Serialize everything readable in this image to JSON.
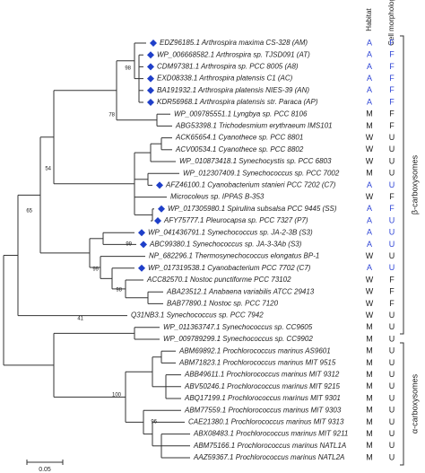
{
  "headers": {
    "habitat": "Habitat",
    "morphology": "Cell morphology"
  },
  "taxa": [
    {
      "label": "EDZ96185.1 Arthrospira maxima CS-328 (AM)",
      "habitat": "A",
      "morphology": "F",
      "marked": true
    },
    {
      "label": "WP_006668582.1 Arthrospira sp. TJSD091 (AT)",
      "habitat": "A",
      "morphology": "F",
      "marked": true
    },
    {
      "label": "CDM97381.1 Arthrospira sp. PCC 8005 (A8)",
      "habitat": "A",
      "morphology": "F",
      "marked": true
    },
    {
      "label": "EXD08338.1 Arthrospira platensis C1 (AC)",
      "habitat": "A",
      "morphology": "F",
      "marked": true
    },
    {
      "label": "BA191932.1 Arthrospira platensis NIES-39 (AN)",
      "habitat": "A",
      "morphology": "F",
      "marked": true
    },
    {
      "label": "KDR56968.1 Arthrospira platensis str. Paraca (AP)",
      "habitat": "A",
      "morphology": "F",
      "marked": true
    },
    {
      "label": "WP_009785551.1 Lyngbya sp. PCC 8106",
      "habitat": "M",
      "morphology": "F",
      "marked": false
    },
    {
      "label": "ABG53398.1 Trichodesmium erythraeum IMS101",
      "habitat": "M",
      "morphology": "F",
      "marked": false
    },
    {
      "label": "ACK65654.1 Cyanothece sp. PCC 8801",
      "habitat": "W",
      "morphology": "U",
      "marked": false
    },
    {
      "label": "ACV00534.1 Cyanothece sp. PCC 8802",
      "habitat": "W",
      "morphology": "U",
      "marked": false
    },
    {
      "label": "WP_010873418.1 Synechocystis sp. PCC 6803",
      "habitat": "W",
      "morphology": "U",
      "marked": false
    },
    {
      "label": "WP_012307409.1 Synechococcus sp. PCC 7002",
      "habitat": "M",
      "morphology": "U",
      "marked": false
    },
    {
      "label": "AFZ46100.1 Cyanobacterium stanieri PCC 7202 (C7)",
      "habitat": "A",
      "morphology": "U",
      "marked": true
    },
    {
      "label": "Microcoleus sp. IPPAS B-353",
      "habitat": "W",
      "morphology": "F",
      "marked": false
    },
    {
      "label": "WP_017305980.1 Spirulina subsalsa PCC 9445 (SS)",
      "habitat": "A",
      "morphology": "F",
      "marked": true
    },
    {
      "label": "AFY75777.1 Pleurocapsa sp. PCC 7327 (P7)",
      "habitat": "A",
      "morphology": "U",
      "marked": true
    },
    {
      "label": "WP_041436791.1 Synechococcus sp. JA-2-3B (S3)",
      "habitat": "A",
      "morphology": "U",
      "marked": true
    },
    {
      "label": "ABC99380.1 Synechococcus sp. JA-3-3Ab (S3)",
      "habitat": "A",
      "morphology": "U",
      "marked": true
    },
    {
      "label": "NP_682296.1 Thermosynechococcus elongatus BP-1",
      "habitat": "W",
      "morphology": "U",
      "marked": false
    },
    {
      "label": "WP_017319538.1 Cyanobacterium PCC 7702 (C7)",
      "habitat": "A",
      "morphology": "U",
      "marked": true
    },
    {
      "label": "ACC82570.1 Nostoc punctiforme PCC 73102",
      "habitat": "W",
      "morphology": "F",
      "marked": false
    },
    {
      "label": "ABA23512.1 Anabaena variabilis ATCC 29413",
      "habitat": "W",
      "morphology": "F",
      "marked": false
    },
    {
      "label": "BAB77890.1 Nostoc sp. PCC 7120",
      "habitat": "W",
      "morphology": "F",
      "marked": false
    },
    {
      "label": "Q31NB3.1 Synechococcus sp. PCC 7942",
      "habitat": "W",
      "morphology": "U",
      "marked": false
    },
    {
      "label": "WP_011363747.1 Synechococcus sp. CC9605",
      "habitat": "M",
      "morphology": "U",
      "marked": false
    },
    {
      "label": "WP_009789299.1 Synechococcus sp. CC9902",
      "habitat": "M",
      "morphology": "U",
      "marked": false
    },
    {
      "label": "ABM69892.1 Prochlorococcus marinus AS9601",
      "habitat": "M",
      "morphology": "U",
      "marked": false
    },
    {
      "label": "ABM71823.1 Prochlorococcus marinus MIT 9515",
      "habitat": "M",
      "morphology": "U",
      "marked": false
    },
    {
      "label": "ABB49611.1 Prochlorococcus marinus MIT 9312",
      "habitat": "M",
      "morphology": "U",
      "marked": false
    },
    {
      "label": "ABV50246.1 Prochlorococcus marinus MIT 9215",
      "habitat": "M",
      "morphology": "U",
      "marked": false
    },
    {
      "label": "ABQ17199.1 Prochlorococcus marinus MIT 9301",
      "habitat": "M",
      "morphology": "U",
      "marked": false
    },
    {
      "label": "ABM77559.1 Prochlorococcus marinus MIT 9303",
      "habitat": "M",
      "morphology": "U",
      "marked": false
    },
    {
      "label": "CAE21380.1 Prochlorococcus marinus MIT 9313",
      "habitat": "M",
      "morphology": "U",
      "marked": false
    },
    {
      "label": "ABX08483.1 Prochlorococcus marinus MIT 9211",
      "habitat": "M",
      "morphology": "U",
      "marked": false
    },
    {
      "label": "ABM75166.1 Prochlorococcus marinus NATL1A",
      "habitat": "M",
      "morphology": "U",
      "marked": false
    },
    {
      "label": "AAZ59367.1 Prochlorococcus marinus NATL2A",
      "habitat": "M",
      "morphology": "U",
      "marked": false
    }
  ],
  "bootstrap": [
    "98",
    "78",
    "54",
    "65",
    "99",
    "99",
    "41",
    "98",
    "100",
    "96"
  ],
  "groups": [
    "β-carboxysomes",
    "α-carboxysomes"
  ],
  "scale": "0.05"
}
